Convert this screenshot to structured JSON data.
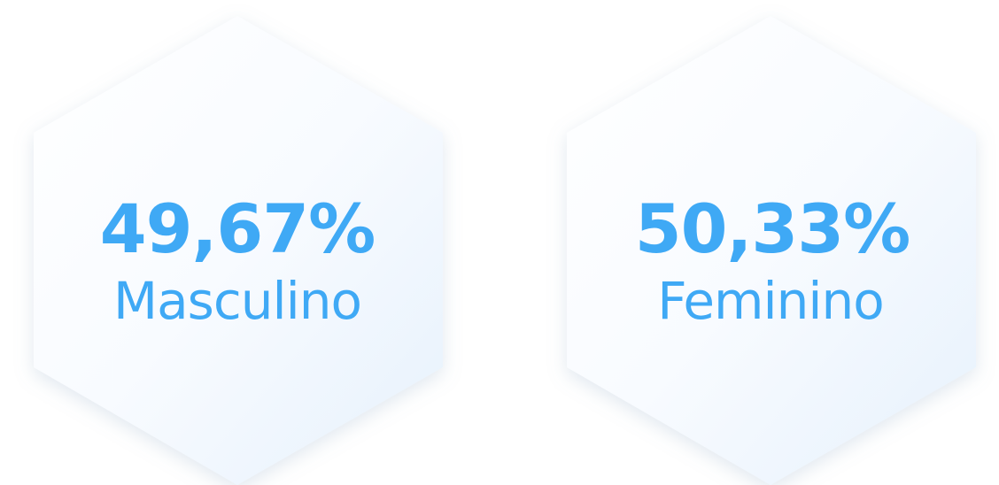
{
  "stats": [
    {
      "value": "49,67%",
      "label": "Masculino"
    },
    {
      "value": "50,33%",
      "label": "Feminino"
    }
  ]
}
